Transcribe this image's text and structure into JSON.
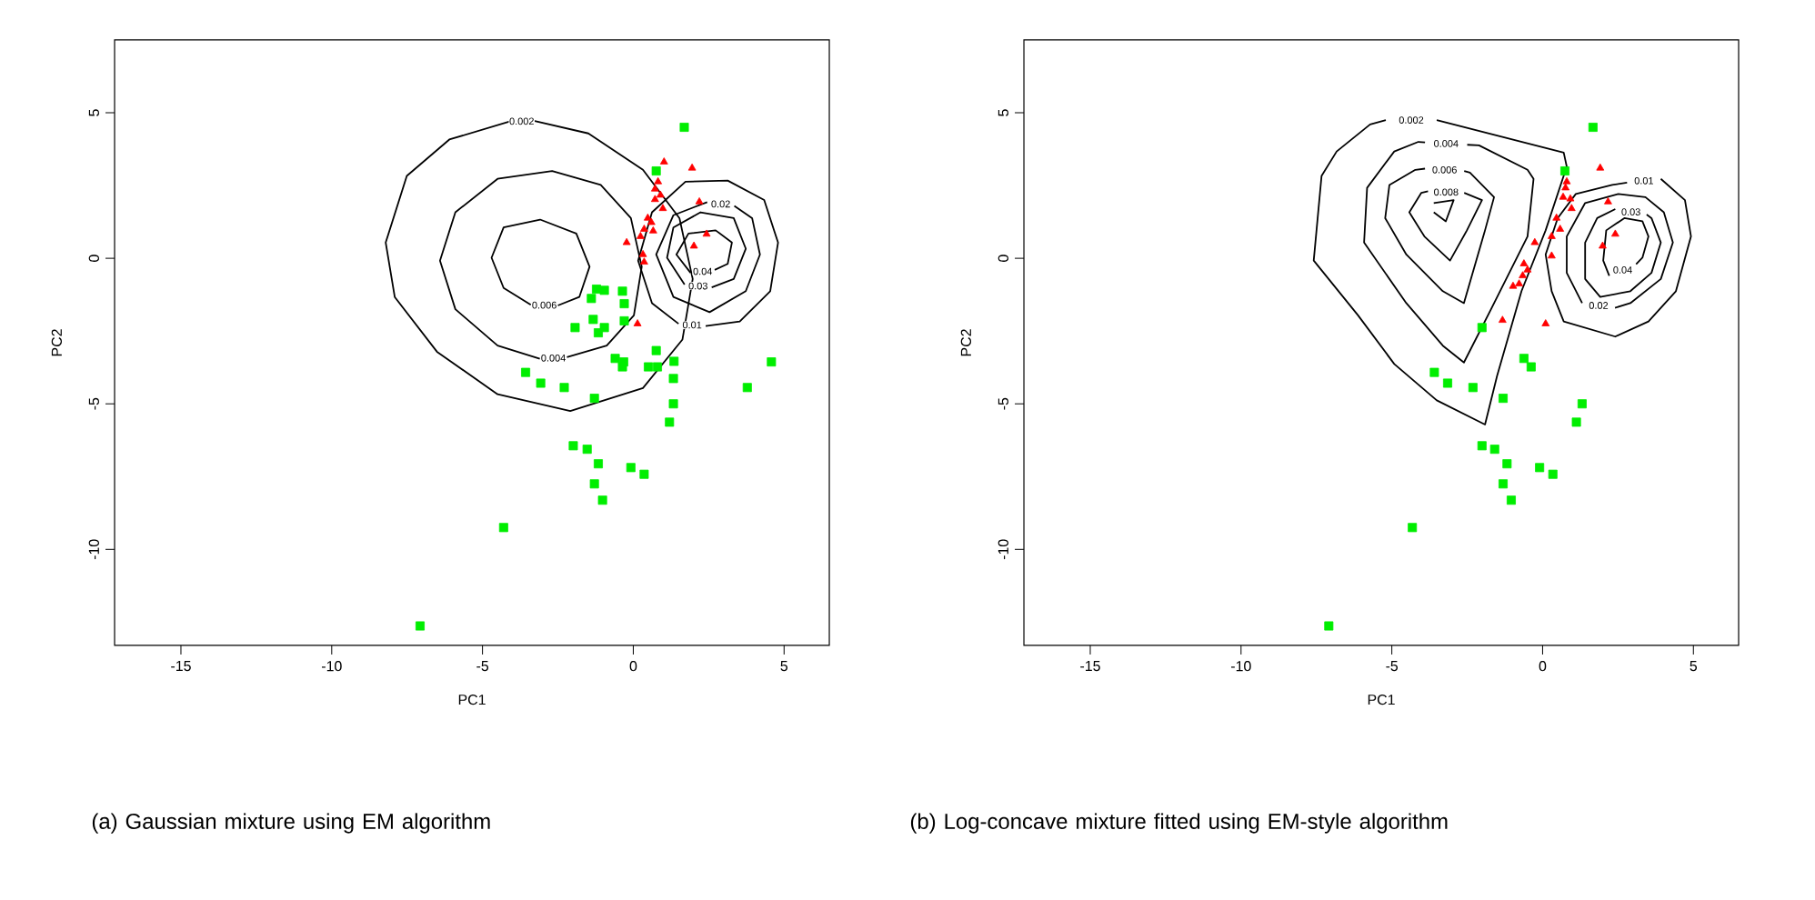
{
  "chart_data": [
    {
      "type": "scatter",
      "xlabel": "PC1",
      "ylabel": "PC2",
      "xlim": [
        -17.2,
        6.5
      ],
      "ylim": [
        -13.3,
        7.5
      ],
      "xticks": [
        -15,
        -10,
        -5,
        0,
        5
      ],
      "yticks": [
        -10,
        -5,
        0,
        5
      ],
      "annotations": [
        "(a)  Gaussian mixture using EM algorithm"
      ],
      "series": [
        {
          "marker": "square",
          "color": "#00ee00",
          "x": [
            1.69,
            0.76,
            -1.22,
            -0.96,
            -0.36,
            -1.39,
            -0.3,
            -1.33,
            -1.93,
            -0.96,
            -0.3,
            -1.16,
            0.76,
            -0.6,
            -0.32,
            -0.36,
            0.5,
            0.8,
            1.35,
            4.58,
            -3.57,
            -3.07,
            -2.29,
            3.78,
            1.33,
            -1.29,
            1.33,
            1.2,
            -1.99,
            -1.53,
            -1.16,
            -0.08,
            0.36,
            -1.29,
            -1.02,
            -4.3,
            -7.07
          ],
          "values": [
            4.5,
            3.0,
            -1.06,
            -1.1,
            -1.13,
            -1.38,
            -1.56,
            -2.1,
            -2.38,
            -2.38,
            -2.15,
            -2.56,
            -3.17,
            -3.44,
            -3.56,
            -3.73,
            -3.73,
            -3.73,
            -3.54,
            -3.56,
            -3.92,
            -4.29,
            -4.44,
            -4.44,
            -4.13,
            -4.81,
            -5.0,
            -5.63,
            -6.44,
            -6.56,
            -7.06,
            -7.19,
            -7.42,
            -7.75,
            -8.31,
            -9.25,
            -12.63
          ]
        },
        {
          "marker": "triangle",
          "color": "#ff0000",
          "x": [
            1.02,
            1.95,
            0.82,
            0.72,
            0.9,
            0.72,
            2.19,
            0.98,
            0.48,
            0.6,
            0.36,
            0.66,
            0.24,
            2.43,
            -0.22,
            2.01,
            0.32,
            0.36,
            0.14
          ],
          "values": [
            3.31,
            3.1,
            2.63,
            2.38,
            2.17,
            2.02,
            1.94,
            1.71,
            1.38,
            1.23,
            1.0,
            0.94,
            0.75,
            0.83,
            0.54,
            0.42,
            0.13,
            -0.13,
            -2.25
          ]
        },
        {
          "type": "line",
          "name": "0.002",
          "color": "#000000",
          "x": [
            -3.3,
            -1.49,
            0.32,
            1.53,
            1.97,
            1.63,
            0.32,
            -2.09,
            -4.5,
            -6.51,
            -7.91,
            -8.21,
            -7.51,
            -6.1,
            -4.1
          ],
          "values": [
            4.72,
            4.29,
            3.04,
            1.38,
            -0.71,
            -2.79,
            -4.46,
            -5.25,
            -4.67,
            -3.21,
            -1.33,
            0.54,
            2.83,
            4.08,
            4.7
          ]
        },
        {
          "type": "line",
          "name": "0.004",
          "color": "#000000",
          "x": [
            -2.2,
            -0.88,
            0.02,
            0.28,
            -0.08,
            -1.08,
            -2.69,
            -4.5,
            -5.9,
            -6.41,
            -5.9,
            -4.5,
            -3.1
          ],
          "values": [
            -3.4,
            -3.0,
            -1.96,
            -0.29,
            1.38,
            2.52,
            3.0,
            2.73,
            1.58,
            -0.08,
            -1.75,
            -3.0,
            -3.45
          ]
        },
        {
          "type": "line",
          "name": "0.006",
          "color": "#000000",
          "x": [
            -2.5,
            -1.79,
            -1.45,
            -1.89,
            -3.09,
            -4.3,
            -4.7,
            -4.3,
            -3.4
          ],
          "values": [
            -1.62,
            -1.33,
            -0.29,
            0.85,
            1.33,
            1.06,
            0.02,
            -1.02,
            -1.6
          ]
        },
        {
          "type": "line",
          "name": "0.01",
          "color": "#000000",
          "x": [
            2.4,
            3.53,
            4.54,
            4.8,
            4.34,
            3.13,
            1.73,
            0.62,
            0.16,
            0.62,
            1.5
          ],
          "values": [
            -2.33,
            -2.17,
            -1.13,
            0.54,
            2.0,
            2.67,
            2.63,
            1.58,
            -0.08,
            -1.54,
            -2.25
          ]
        },
        {
          "type": "line",
          "name": "0.02",
          "color": "#000000",
          "x": [
            3.35,
            3.94,
            4.2,
            3.73,
            2.53,
            1.33,
            0.76,
            1.33,
            2.45
          ],
          "values": [
            1.8,
            1.38,
            0.13,
            -1.13,
            -1.85,
            -1.33,
            0.13,
            1.48,
            1.93
          ]
        },
        {
          "type": "line",
          "name": "0.03",
          "color": "#000000",
          "x": [
            2.6,
            3.33,
            3.73,
            3.33,
            2.23,
            1.33,
            1.12,
            1.7
          ],
          "values": [
            -1.0,
            -0.71,
            0.33,
            1.38,
            1.58,
            1.06,
            0.02,
            -0.9
          ]
        },
        {
          "type": "line",
          "name": "0.04",
          "color": "#000000",
          "x": [
            2.7,
            3.13,
            3.27,
            2.73,
            1.83,
            1.43,
            1.9
          ],
          "values": [
            -0.4,
            -0.19,
            0.54,
            0.96,
            0.85,
            0.13,
            -0.5
          ]
        }
      ]
    },
    {
      "type": "scatter",
      "xlabel": "PC1",
      "ylabel": "PC2",
      "xlim": [
        -17.2,
        6.5
      ],
      "ylim": [
        -13.3,
        7.5
      ],
      "xticks": [
        -15,
        -10,
        -5,
        0,
        5
      ],
      "yticks": [
        -10,
        -5,
        0,
        5
      ],
      "annotations": [
        "(b)  Log-concave mixture fitted using EM-style algorithm"
      ],
      "series": [
        {
          "marker": "square",
          "color": "#00ee00",
          "x": [
            1.67,
            0.74,
            -2.01,
            -0.62,
            -0.38,
            -3.59,
            -3.15,
            -2.31,
            -1.31,
            1.31,
            1.12,
            -2.01,
            -1.59,
            -1.18,
            -0.1,
            0.34,
            -1.31,
            -1.04,
            -4.32,
            -7.09
          ],
          "values": [
            4.5,
            3.0,
            -2.38,
            -3.44,
            -3.73,
            -3.92,
            -4.29,
            -4.44,
            -4.81,
            -5.0,
            -5.63,
            -6.44,
            -6.56,
            -7.06,
            -7.19,
            -7.42,
            -7.75,
            -8.31,
            -9.25,
            -12.63
          ]
        },
        {
          "marker": "triangle",
          "color": "#ff0000",
          "x": [
            1.91,
            0.8,
            0.76,
            0.68,
            0.92,
            0.96,
            0.46,
            0.58,
            0.3,
            2.17,
            2.41,
            -0.26,
            1.99,
            0.3,
            -0.62,
            -0.5,
            -0.66,
            -0.78,
            -0.98,
            -1.33,
            0.1
          ],
          "values": [
            3.1,
            2.63,
            2.42,
            2.1,
            2.04,
            1.71,
            1.38,
            1.0,
            0.75,
            1.94,
            0.83,
            0.54,
            0.42,
            0.08,
            -0.19,
            -0.4,
            -0.6,
            -0.88,
            -0.96,
            -2.13,
            -2.25
          ]
        },
        {
          "type": "line",
          "name": "0.002",
          "color": "#000000",
          "x": [
            -3.51,
            0.7,
            0.8,
            0.1,
            -0.7,
            -1.51,
            -1.91,
            -3.51,
            -4.92,
            -6.12,
            -7.59,
            -7.33,
            -6.83,
            -5.72,
            -5.2
          ],
          "values": [
            4.75,
            3.63,
            3.15,
            0.96,
            -1.13,
            -4.04,
            -5.71,
            -4.88,
            -3.63,
            -1.96,
            -0.08,
            2.83,
            3.67,
            4.6,
            4.75
          ]
        },
        {
          "type": "line",
          "name": "0.004",
          "color": "#000000",
          "x": [
            -2.5,
            -2.11,
            -0.5,
            -0.3,
            -0.5,
            -1.71,
            -2.61,
            -3.31,
            -4.52,
            -5.92,
            -5.82,
            -4.92,
            -4.12,
            -3.9
          ],
          "values": [
            3.9,
            3.88,
            3.04,
            2.73,
            0.75,
            -1.75,
            -3.58,
            -3.0,
            -1.54,
            0.54,
            2.42,
            3.67,
            4.0,
            3.98
          ]
        },
        {
          "type": "line",
          "name": "0.006",
          "color": "#000000",
          "x": [
            -2.6,
            -2.41,
            -1.61,
            -1.91,
            -2.61,
            -3.31,
            -4.52,
            -5.22,
            -5.08,
            -4.22,
            -3.9
          ],
          "values": [
            3.0,
            2.94,
            2.1,
            0.96,
            -1.54,
            -1.13,
            0.13,
            1.38,
            2.52,
            3.04,
            3.08
          ]
        },
        {
          "type": "line",
          "name": "0.008",
          "color": "#000000",
          "x": [
            -2.6,
            -2.01,
            -2.51,
            -3.07,
            -3.92,
            -4.42,
            -4.02,
            -3.8
          ],
          "values": [
            2.25,
            2.0,
            0.96,
            -0.08,
            0.75,
            1.58,
            2.25,
            2.3
          ]
        },
        {
          "type": "line",
          "color": "#000000",
          "x": [
            -3.61,
            -2.95,
            -3.21,
            -3.61
          ],
          "values": [
            1.9,
            2.0,
            1.27,
            1.58
          ]
        },
        {
          "type": "line",
          "name": "0.01",
          "color": "#000000",
          "x": [
            3.92,
            4.72,
            4.92,
            4.42,
            3.51,
            2.41,
            0.7,
            0.3,
            0.1,
            0.5,
            1.1,
            2.31,
            2.8
          ],
          "values": [
            2.73,
            2.0,
            0.75,
            -1.13,
            -2.17,
            -2.69,
            -2.17,
            -1.13,
            0.13,
            1.38,
            2.21,
            2.52,
            2.6
          ]
        },
        {
          "type": "line",
          "name": "0.02",
          "color": "#000000",
          "x": [
            2.4,
            2.91,
            3.92,
            4.32,
            4.02,
            3.41,
            2.51,
            1.41,
            0.8,
            0.8,
            1.31
          ],
          "values": [
            -1.7,
            -1.54,
            -0.71,
            0.54,
            1.58,
            2.1,
            2.21,
            1.9,
            0.75,
            -0.5,
            -1.54
          ]
        },
        {
          "type": "line",
          "name": "0.03",
          "color": "#000000",
          "x": [
            3.45,
            3.61,
            3.92,
            3.61,
            2.91,
            1.91,
            1.41,
            1.41,
            1.81,
            2.41
          ],
          "values": [
            1.5,
            1.38,
            0.54,
            -0.5,
            -1.13,
            -1.33,
            -0.71,
            0.54,
            1.38,
            1.69
          ]
        },
        {
          "type": "line",
          "name": "0.04",
          "color": "#000000",
          "x": [
            3.1,
            3.31,
            3.51,
            3.31,
            2.71,
            2.11,
            2.01,
            2.21
          ],
          "values": [
            -0.2,
            0.02,
            0.75,
            1.27,
            1.38,
            0.96,
            -0.08,
            -0.6
          ]
        }
      ]
    }
  ]
}
